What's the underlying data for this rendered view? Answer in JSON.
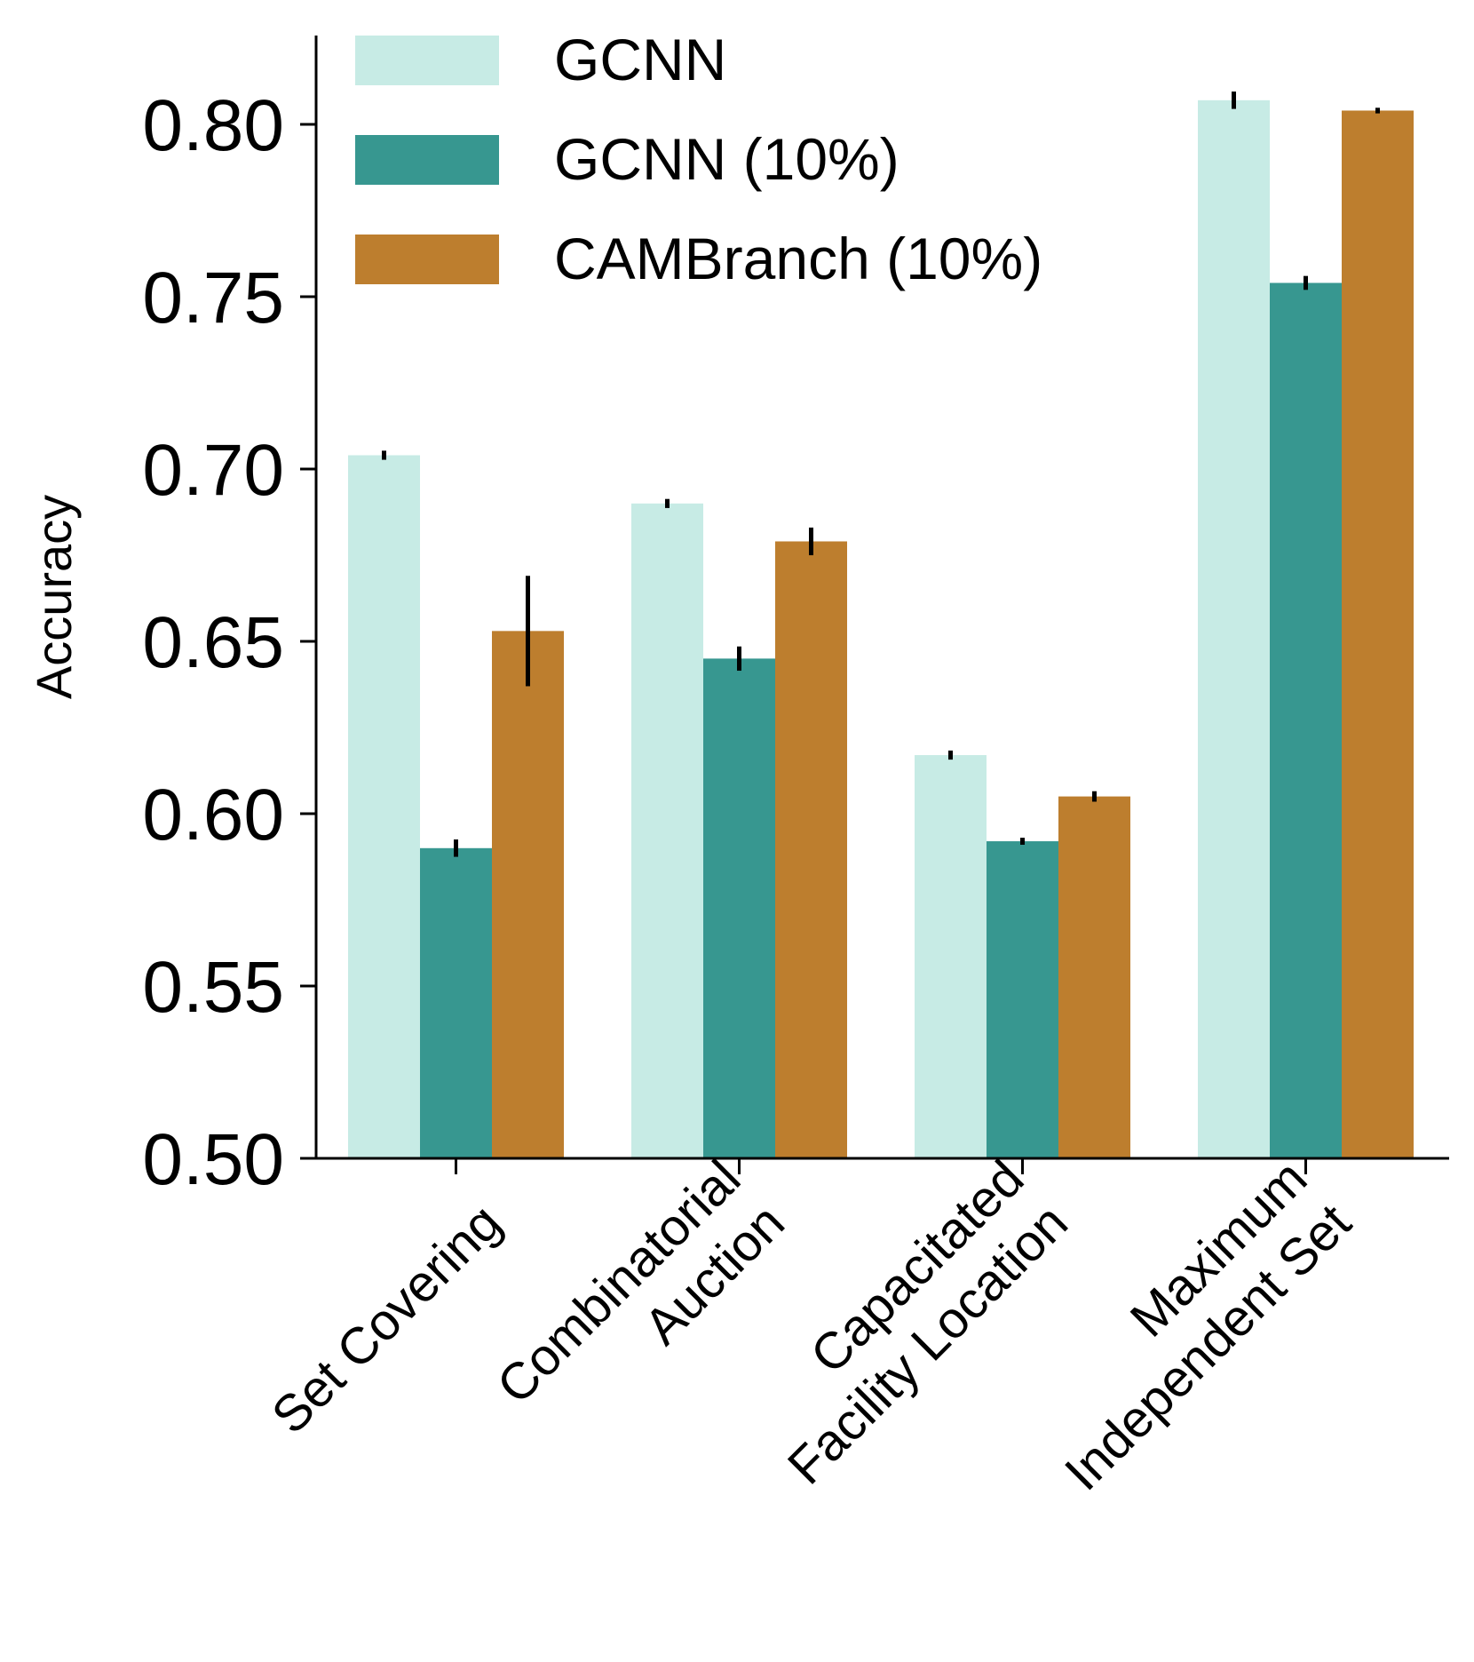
{
  "chart_data": {
    "type": "bar",
    "title": "",
    "xlabel": "",
    "ylabel": "Accuracy",
    "ylim": [
      0.5,
      0.825
    ],
    "yticks": [
      "0.50",
      "0.55",
      "0.60",
      "0.65",
      "0.70",
      "0.75",
      "0.80"
    ],
    "categories": [
      [
        "Set Covering"
      ],
      [
        "Combinatorial",
        "Auction"
      ],
      [
        "Capacitated",
        "Facility Location"
      ],
      [
        "Maximum",
        "Independent Set"
      ]
    ],
    "legend_position": "top-left",
    "grid": false,
    "series": [
      {
        "name": "GCNN",
        "color": "#c7ebe5",
        "values": [
          0.704,
          0.69,
          0.617,
          0.807
        ],
        "errors": [
          0.0008,
          0.0008,
          0.0008,
          0.002
        ]
      },
      {
        "name": "GCNN (10%)",
        "color": "#379790",
        "values": [
          0.59,
          0.645,
          0.592,
          0.754
        ],
        "errors": [
          0.002,
          0.003,
          0.0005,
          0.0015
        ]
      },
      {
        "name": "CAMBranch (10%)",
        "color": "#bd7e2e",
        "values": [
          0.653,
          0.679,
          0.605,
          0.804
        ],
        "errors": [
          0.0155,
          0.0035,
          0.001,
          0.0003
        ]
      }
    ]
  }
}
